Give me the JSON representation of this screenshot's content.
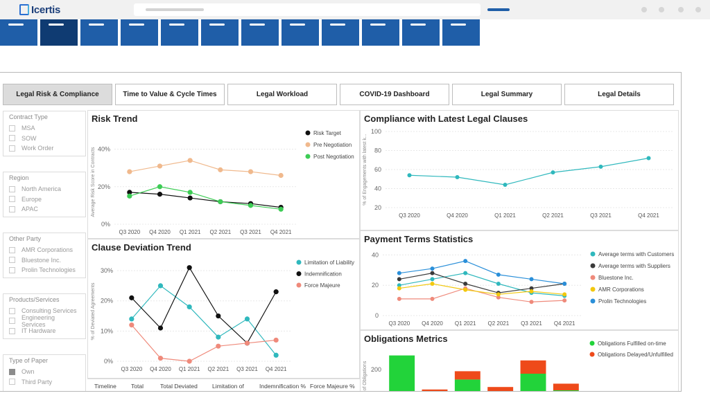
{
  "app": {
    "logo_text": "Icertis",
    "nav_tiles": 12,
    "active_nav_tile": 1
  },
  "tabs": [
    {
      "label": "Legal Risk & Compliance",
      "active": true
    },
    {
      "label": "Time to Value & Cycle Times",
      "active": false
    },
    {
      "label": "Legal Workload",
      "active": false
    },
    {
      "label": "COVID-19 Dashboard",
      "active": false
    },
    {
      "label": "Legal Summary",
      "active": false
    },
    {
      "label": "Legal Details",
      "active": false
    }
  ],
  "filters": [
    {
      "title": "Contract Type",
      "items": [
        {
          "label": "MSA",
          "checked": false
        },
        {
          "label": "SOW",
          "checked": false
        },
        {
          "label": "Work Order",
          "checked": false
        }
      ]
    },
    {
      "title": "Region",
      "items": [
        {
          "label": "North America",
          "checked": false
        },
        {
          "label": "Europe",
          "checked": false
        },
        {
          "label": "APAC",
          "checked": false
        }
      ]
    },
    {
      "title": "Other Party",
      "items": [
        {
          "label": "AMR Corporations",
          "checked": false
        },
        {
          "label": "Bluestone Inc.",
          "checked": false
        },
        {
          "label": "Prolin Technologies",
          "checked": false
        }
      ]
    },
    {
      "title": "Products/Services",
      "items": [
        {
          "label": "Consulting Services",
          "checked": false
        },
        {
          "label": "Engineering Services",
          "checked": false
        },
        {
          "label": "IT Hardware",
          "checked": false
        }
      ]
    },
    {
      "title": "Type of Paper",
      "items": [
        {
          "label": "Own",
          "checked": true
        },
        {
          "label": "Third Party",
          "checked": false
        }
      ]
    }
  ],
  "colors": {
    "black": "#111111",
    "peach": "#f0b98d",
    "green": "#3dcc55",
    "teal": "#2fb8bd",
    "salmon": "#ef8a7b",
    "dark_grey": "#3a3a3a",
    "yellow": "#f2c80f",
    "blue": "#2a8fd9",
    "bar_green": "#22d33a",
    "bar_red": "#ee4a1a"
  },
  "chart_data": [
    {
      "id": "risk-trend",
      "type": "line",
      "title": "Risk Trend",
      "ylabel": "Average Risk Score in Contracts",
      "categories": [
        "Q3 2020",
        "Q4 2020",
        "Q1 2021",
        "Q2 2021",
        "Q3 2021",
        "Q4 2021"
      ],
      "ylim": [
        0,
        45
      ],
      "yticks": [
        0,
        20,
        40
      ],
      "ytick_labels": [
        "0%",
        "20%",
        "40%"
      ],
      "series": [
        {
          "name": "Risk Target",
          "color": "#111111",
          "values": [
            17,
            16,
            14,
            12,
            11,
            9
          ]
        },
        {
          "name": "Pre Negotiation",
          "color": "#f0b98d",
          "values": [
            28,
            31,
            34,
            29,
            28,
            26
          ]
        },
        {
          "name": "Post Negotiation",
          "color": "#3dcc55",
          "values": [
            15,
            20,
            17,
            12,
            10,
            8
          ]
        }
      ]
    },
    {
      "id": "compliance",
      "type": "line",
      "title": "Compliance with Latest Legal Clauses",
      "ylabel": "% of Engagements with latest k...",
      "categories": [
        "Q3 2020",
        "Q4 2020",
        "Q1 2021",
        "Q2 2021",
        "Q3 2021",
        "Q4 2021"
      ],
      "ylim": [
        20,
        100
      ],
      "yticks": [
        20,
        40,
        60,
        80,
        100
      ],
      "ytick_labels": [
        "20",
        "40",
        "60",
        "80",
        "100"
      ],
      "series": [
        {
          "name": "",
          "color": "#2fb8bd",
          "values": [
            54,
            52,
            44,
            57,
            63,
            72
          ]
        }
      ]
    },
    {
      "id": "clause-deviation",
      "type": "line",
      "title": "Clause Deviation Trend",
      "ylabel": "% of Deviated Agreements",
      "categories": [
        "Q3 2020",
        "Q4 2020",
        "Q1 2021",
        "Q2 2021",
        "Q3 2021",
        "Q4 2021"
      ],
      "ylim": [
        0,
        33
      ],
      "yticks": [
        0,
        10,
        20,
        30
      ],
      "ytick_labels": [
        "0%",
        "10%",
        "20%",
        "30%"
      ],
      "series": [
        {
          "name": "Limitation of Liability",
          "color": "#2fb8bd",
          "values": [
            14,
            25,
            18,
            8,
            14,
            2
          ]
        },
        {
          "name": "Indemnification",
          "color": "#111111",
          "values": [
            21,
            11,
            31,
            15,
            6,
            23
          ]
        },
        {
          "name": "Force Majeure",
          "color": "#ef8a7b",
          "values": [
            12,
            1,
            0,
            5,
            6,
            7
          ]
        }
      ]
    },
    {
      "id": "payment-terms",
      "type": "line",
      "title": "Payment  Terms Statistics",
      "ylabel": "",
      "categories": [
        "Q3 2020",
        "Q4 2020",
        "Q1 2021",
        "Q2 2021",
        "Q3 2021",
        "Q4 2021"
      ],
      "ylim": [
        0,
        42
      ],
      "yticks": [
        0,
        20,
        40
      ],
      "ytick_labels": [
        "0",
        "20",
        "40"
      ],
      "series": [
        {
          "name": "Average terms with Customers",
          "color": "#2fb8bd",
          "values": [
            20,
            24,
            28,
            21,
            15,
            13
          ]
        },
        {
          "name": "Average terms with Suppliers",
          "color": "#3a3a3a",
          "values": [
            24,
            28,
            21,
            15,
            18,
            21
          ]
        },
        {
          "name": "Bluestone Inc.",
          "color": "#ef8a7b",
          "values": [
            11,
            11,
            18,
            12,
            9,
            10
          ]
        },
        {
          "name": "AMR Corporations",
          "color": "#f2c80f",
          "values": [
            18,
            21,
            17,
            14,
            16,
            14
          ]
        },
        {
          "name": "Prolin Technologies",
          "color": "#2a8fd9",
          "values": [
            28,
            31,
            36,
            27,
            24,
            21
          ]
        }
      ]
    },
    {
      "id": "obligations",
      "type": "bar",
      "stacked": true,
      "title": "Obligations Metrics",
      "ylabel": "# of Obligations",
      "ylim": [
        0,
        300
      ],
      "yticks": [
        200
      ],
      "ytick_labels": [
        "200"
      ],
      "bar_count": 6,
      "series": [
        {
          "name": "Obligations Fulfilled on-time",
          "color": "#22d33a",
          "values": [
            285,
            0,
            140,
            0,
            175,
            75
          ]
        },
        {
          "name": "Obligations Delayed/Unfulfilled",
          "color": "#ee4a1a",
          "values": [
            0,
            80,
            50,
            95,
            80,
            40
          ]
        }
      ]
    }
  ],
  "table": {
    "columns": [
      "Timeline",
      "Total",
      "Total Deviated",
      "Limitation of",
      "Indemnification %",
      "Force Majeure %"
    ]
  }
}
